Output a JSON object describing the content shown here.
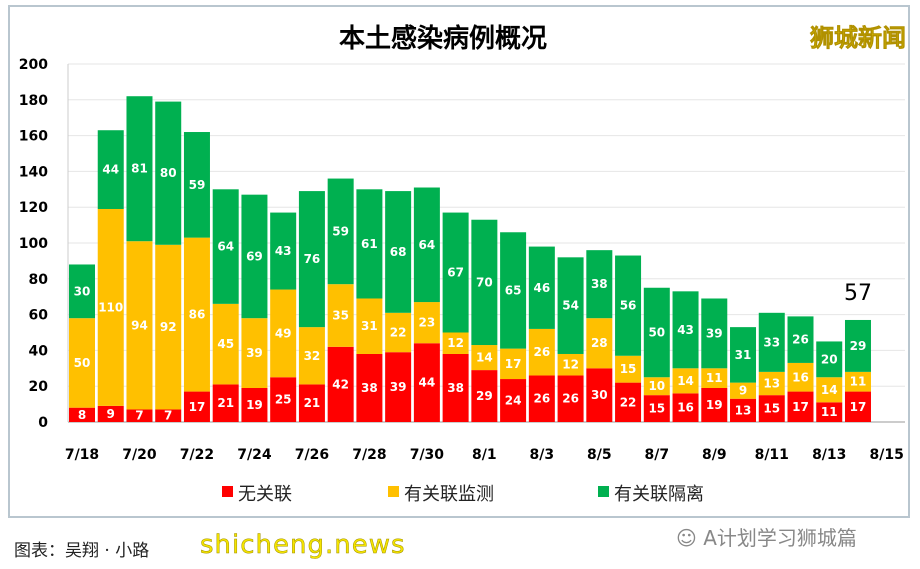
{
  "brand": "狮城新闻",
  "caption": "图表：吴翔 · 小路",
  "watermark": "shicheng.news",
  "wechat_source": "A计划学习狮城篇",
  "chart_data": {
    "type": "bar",
    "stacked": true,
    "title": "本土感染病例概况",
    "categories": [
      "7/18",
      "7/19",
      "7/20",
      "7/21",
      "7/22",
      "7/23",
      "7/24",
      "7/25",
      "7/26",
      "7/27",
      "7/28",
      "7/29",
      "7/30",
      "7/31",
      "8/1",
      "8/2",
      "8/3",
      "8/4",
      "8/5",
      "8/6",
      "8/7",
      "8/8",
      "8/9",
      "8/10",
      "8/11",
      "8/12",
      "8/13",
      "8/14"
    ],
    "x_tick_labels": [
      "7/18",
      "7/20",
      "7/22",
      "7/24",
      "7/26",
      "7/28",
      "7/30",
      "8/1",
      "8/3",
      "8/5",
      "8/7",
      "8/9",
      "8/11",
      "8/13",
      "8/15"
    ],
    "y_ticks": [
      0,
      20,
      40,
      60,
      80,
      100,
      120,
      140,
      160,
      180,
      200
    ],
    "ylim": [
      0,
      200
    ],
    "grid": true,
    "legend_position": "bottom",
    "series": [
      {
        "name": "无关联",
        "color": "#ff0000",
        "values": [
          8,
          9,
          7,
          7,
          17,
          21,
          19,
          25,
          21,
          42,
          38,
          39,
          44,
          38,
          29,
          24,
          26,
          26,
          30,
          22,
          15,
          16,
          19,
          13,
          15,
          17,
          11,
          17
        ]
      },
      {
        "name": "有关联监测",
        "color": "#ffc000",
        "values": [
          50,
          110,
          94,
          92,
          86,
          45,
          39,
          49,
          32,
          35,
          31,
          22,
          23,
          12,
          14,
          17,
          26,
          12,
          28,
          15,
          10,
          14,
          11,
          9,
          13,
          16,
          14,
          11
        ]
      },
      {
        "name": "有关联隔离",
        "color": "#00b050",
        "values": [
          30,
          44,
          81,
          80,
          59,
          64,
          69,
          43,
          76,
          59,
          61,
          68,
          64,
          67,
          70,
          65,
          46,
          54,
          38,
          56,
          50,
          43,
          39,
          31,
          33,
          26,
          20,
          29
        ]
      }
    ],
    "annotations": [
      {
        "category": "8/14",
        "text": "57"
      }
    ]
  }
}
